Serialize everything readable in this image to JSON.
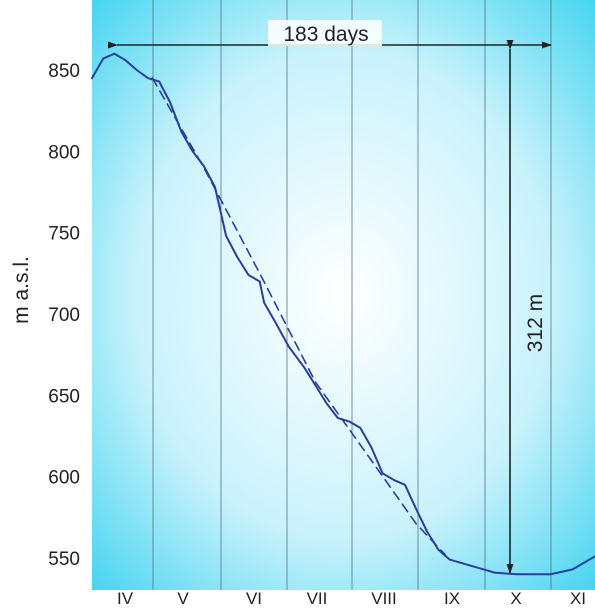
{
  "chart_data": {
    "type": "line",
    "title": "",
    "xlabel": "",
    "ylabel": "m a.s.l.",
    "ylim": [
      530,
      880
    ],
    "y_ticks": [
      550,
      600,
      650,
      700,
      750,
      800,
      850
    ],
    "month_labels": [
      "IV",
      "V",
      "VI",
      "VII",
      "VIII",
      "IX",
      "X",
      "XI"
    ],
    "grid": "vertical lines at month boundaries",
    "series": [
      {
        "style": "solid",
        "points": [
          {
            "x": 0,
            "y": 845
          },
          {
            "x": 5,
            "y": 857
          },
          {
            "x": 10,
            "y": 860
          },
          {
            "x": 15,
            "y": 856
          },
          {
            "x": 20,
            "y": 850
          },
          {
            "x": 25,
            "y": 845
          },
          {
            "x": 30,
            "y": 843
          },
          {
            "x": 35,
            "y": 830
          },
          {
            "x": 40,
            "y": 812
          },
          {
            "x": 45,
            "y": 800
          },
          {
            "x": 50,
            "y": 791
          },
          {
            "x": 55,
            "y": 778
          },
          {
            "x": 60,
            "y": 748
          },
          {
            "x": 65,
            "y": 735
          },
          {
            "x": 70,
            "y": 724
          },
          {
            "x": 75,
            "y": 720
          },
          {
            "x": 77,
            "y": 707
          },
          {
            "x": 82,
            "y": 695
          },
          {
            "x": 88,
            "y": 680
          },
          {
            "x": 95,
            "y": 667
          },
          {
            "x": 100,
            "y": 656
          },
          {
            "x": 105,
            "y": 645
          },
          {
            "x": 110,
            "y": 636
          },
          {
            "x": 115,
            "y": 634
          },
          {
            "x": 120,
            "y": 630
          },
          {
            "x": 125,
            "y": 618
          },
          {
            "x": 130,
            "y": 602
          },
          {
            "x": 135,
            "y": 598
          },
          {
            "x": 140,
            "y": 595
          },
          {
            "x": 145,
            "y": 580
          },
          {
            "x": 150,
            "y": 566
          },
          {
            "x": 155,
            "y": 555
          },
          {
            "x": 160,
            "y": 549
          },
          {
            "x": 170,
            "y": 545
          },
          {
            "x": 180,
            "y": 541
          },
          {
            "x": 190,
            "y": 540
          },
          {
            "x": 200,
            "y": 540
          },
          {
            "x": 205,
            "y": 540
          },
          {
            "x": 215,
            "y": 543
          },
          {
            "x": 225,
            "y": 551
          }
        ]
      },
      {
        "style": "dashed",
        "points": [
          {
            "x": 27,
            "y": 845
          },
          {
            "x": 50,
            "y": 790
          },
          {
            "x": 75,
            "y": 725
          },
          {
            "x": 100,
            "y": 658
          },
          {
            "x": 125,
            "y": 610
          },
          {
            "x": 145,
            "y": 571
          },
          {
            "x": 158,
            "y": 552
          }
        ]
      }
    ],
    "annotations": {
      "span_label": "183 days",
      "drop_label": "312 m"
    },
    "colors": {
      "line": "#2a3f9c",
      "grid": "#4e6d78",
      "text": "#222222",
      "bg_center": "#ffffff",
      "bg_edge": "#33d0ee"
    }
  }
}
